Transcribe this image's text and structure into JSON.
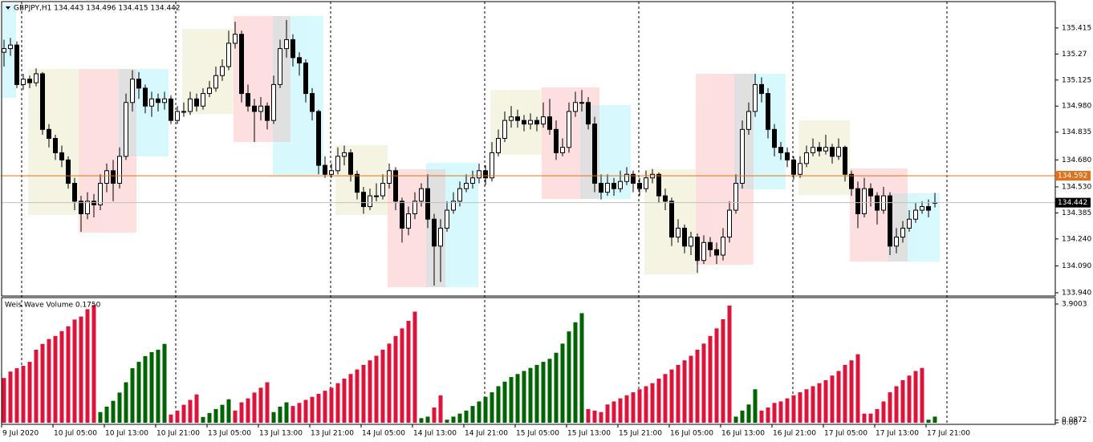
{
  "header": {
    "symbol_line": "GBPJPY,H1 134.443 134.496 134.415 134.442"
  },
  "chart_data": [
    {
      "type": "candlestick",
      "up_color": "#ffffff",
      "down_color": "#000000",
      "ylim": [
        133.922,
        135.562
      ],
      "yticks": [
        135.415,
        135.27,
        135.125,
        {
          "value": 134.98,
          "label": "134.980"
        },
        134.835,
        {
          "value": 134.68,
          "label": "134.680"
        },
        {
          "value": 134.53,
          "label": "134.530"
        },
        134.385,
        {
          "value": 134.24,
          "label": "134.240"
        },
        {
          "value": 134.09,
          "label": "134.090"
        },
        {
          "value": 133.94,
          "label": "133.940"
        }
      ],
      "price_lines": [
        {
          "value": 134.592,
          "color": "#e0701a",
          "label_color": "#e0701a"
        },
        {
          "value": 134.442,
          "color": "#c0c0c0",
          "label_color": "#000000"
        }
      ],
      "time_labels": [
        "9 Jul 2020",
        "10 Jul 05:00",
        "10 Jul 13:00",
        "10 Jul 21:00",
        "13 Jul 05:00",
        "13 Jul 13:00",
        "13 Jul 21:00",
        "14 Jul 05:00",
        "14 Jul 13:00",
        "14 Jul 21:00",
        "15 Jul 05:00",
        "15 Jul 13:00",
        "15 Jul 21:00",
        "16 Jul 05:00",
        "16 Jul 13:00",
        "16 Jul 21:00",
        "17 Jul 05:00",
        "17 Jul 13:00",
        "17 Jul 21:00"
      ],
      "ohlc": [
        [
          135.28,
          135.35,
          135.2,
          135.3
        ],
        [
          135.3,
          135.36,
          135.26,
          135.32
        ],
        [
          135.32,
          135.34,
          135.08,
          135.1
        ],
        [
          135.1,
          135.16,
          135.07,
          135.13
        ],
        [
          135.13,
          135.15,
          135.08,
          135.11
        ],
        [
          135.11,
          135.19,
          135.09,
          135.16
        ],
        [
          135.16,
          135.17,
          134.82,
          134.85
        ],
        [
          134.85,
          134.88,
          134.75,
          134.8
        ],
        [
          134.8,
          134.82,
          134.68,
          134.72
        ],
        [
          134.72,
          134.76,
          134.64,
          134.68
        ],
        [
          134.68,
          134.7,
          134.52,
          134.55
        ],
        [
          134.55,
          134.58,
          134.4,
          134.45
        ],
        [
          134.45,
          134.48,
          134.28,
          134.38
        ],
        [
          134.38,
          134.5,
          134.35,
          134.45
        ],
        [
          134.45,
          134.49,
          134.36,
          134.43
        ],
        [
          134.43,
          134.6,
          134.4,
          134.55
        ],
        [
          134.55,
          134.66,
          134.5,
          134.62
        ],
        [
          134.62,
          134.68,
          134.45,
          134.55
        ],
        [
          134.55,
          134.75,
          134.52,
          134.7
        ],
        [
          134.7,
          135.05,
          134.68,
          135.0
        ],
        [
          135.0,
          135.18,
          134.95,
          135.13
        ],
        [
          135.13,
          135.17,
          135.02,
          135.08
        ],
        [
          135.08,
          135.1,
          134.94,
          134.98
        ],
        [
          134.98,
          135.06,
          134.92,
          135.02
        ],
        [
          135.02,
          135.05,
          134.95,
          135.0
        ],
        [
          135.0,
          135.06,
          134.96,
          135.02
        ],
        [
          135.02,
          135.04,
          134.88,
          134.9
        ],
        [
          134.9,
          134.98,
          134.88,
          134.95
        ],
        [
          134.95,
          135.0,
          134.92,
          134.95
        ],
        [
          134.95,
          135.06,
          134.93,
          135.02
        ],
        [
          135.02,
          135.05,
          134.95,
          134.98
        ],
        [
          134.98,
          135.08,
          134.96,
          135.05
        ],
        [
          135.05,
          135.12,
          135.03,
          135.08
        ],
        [
          135.08,
          135.2,
          135.06,
          135.15
        ],
        [
          135.15,
          135.24,
          135.12,
          135.2
        ],
        [
          135.2,
          135.4,
          135.18,
          135.33
        ],
        [
          135.33,
          135.45,
          135.3,
          135.38
        ],
        [
          135.38,
          135.4,
          135.0,
          135.05
        ],
        [
          135.05,
          135.1,
          134.95,
          134.98
        ],
        [
          134.98,
          135.02,
          134.78,
          134.95
        ],
        [
          134.95,
          135.03,
          134.9,
          134.98
        ],
        [
          134.98,
          135.0,
          134.85,
          134.9
        ],
        [
          134.9,
          135.15,
          134.88,
          135.1
        ],
        [
          135.1,
          135.35,
          135.08,
          135.3
        ],
        [
          135.3,
          135.46,
          135.25,
          135.35
        ],
        [
          135.35,
          135.38,
          135.2,
          135.25
        ],
        [
          135.25,
          135.28,
          135.15,
          135.22
        ],
        [
          135.22,
          135.24,
          135.0,
          135.05
        ],
        [
          135.05,
          135.08,
          134.9,
          134.95
        ],
        [
          134.95,
          134.96,
          134.6,
          134.65
        ],
        [
          134.65,
          134.7,
          134.58,
          134.6
        ],
        [
          134.6,
          134.66,
          134.58,
          134.62
        ],
        [
          134.62,
          134.75,
          134.6,
          134.7
        ],
        [
          134.7,
          134.76,
          134.65,
          134.72
        ],
        [
          134.72,
          134.74,
          134.56,
          134.6
        ],
        [
          134.6,
          134.62,
          134.46,
          134.5
        ],
        [
          134.5,
          134.53,
          134.38,
          134.42
        ],
        [
          134.42,
          134.52,
          134.4,
          134.48
        ],
        [
          134.48,
          134.55,
          134.45,
          134.48
        ],
        [
          134.48,
          134.6,
          134.46,
          134.55
        ],
        [
          134.55,
          134.66,
          134.52,
          134.62
        ],
        [
          134.62,
          134.64,
          134.4,
          134.45
        ],
        [
          134.45,
          134.47,
          134.22,
          134.3
        ],
        [
          134.3,
          134.42,
          134.26,
          134.38
        ],
        [
          134.38,
          134.5,
          134.35,
          134.45
        ],
        [
          134.45,
          134.55,
          134.42,
          134.52
        ],
        [
          134.52,
          134.6,
          134.3,
          134.35
        ],
        [
          134.35,
          134.38,
          133.98,
          134.2
        ],
        [
          134.2,
          134.35,
          134.0,
          134.3
        ],
        [
          134.3,
          134.45,
          134.28,
          134.4
        ],
        [
          134.4,
          134.5,
          134.38,
          134.45
        ],
        [
          134.45,
          134.56,
          134.42,
          134.52
        ],
        [
          134.52,
          134.6,
          134.5,
          134.55
        ],
        [
          134.55,
          134.62,
          134.52,
          134.58
        ],
        [
          134.58,
          134.66,
          134.55,
          134.62
        ],
        [
          134.62,
          134.65,
          134.54,
          134.58
        ],
        [
          134.58,
          134.78,
          134.56,
          134.72
        ],
        [
          134.72,
          134.85,
          134.7,
          134.8
        ],
        [
          134.8,
          134.95,
          134.78,
          134.9
        ],
        [
          134.9,
          134.98,
          134.86,
          134.92
        ],
        [
          134.92,
          134.96,
          134.86,
          134.9
        ],
        [
          134.9,
          134.93,
          134.84,
          134.88
        ],
        [
          134.88,
          134.94,
          134.85,
          134.9
        ],
        [
          134.9,
          134.92,
          134.84,
          134.88
        ],
        [
          134.88,
          135.0,
          134.86,
          134.92
        ],
        [
          134.92,
          135.02,
          134.82,
          134.85
        ],
        [
          134.85,
          134.9,
          134.68,
          134.72
        ],
        [
          134.72,
          134.8,
          134.7,
          134.75
        ],
        [
          134.75,
          135.0,
          134.72,
          134.95
        ],
        [
          134.95,
          135.06,
          134.92,
          135.0
        ],
        [
          135.0,
          135.07,
          134.95,
          135.0
        ],
        [
          135.0,
          135.03,
          134.85,
          134.88
        ],
        [
          134.88,
          134.92,
          134.5,
          134.55
        ],
        [
          134.55,
          134.6,
          134.46,
          134.5
        ],
        [
          134.5,
          134.6,
          134.48,
          134.55
        ],
        [
          134.55,
          134.58,
          134.48,
          134.52
        ],
        [
          134.52,
          134.62,
          134.5,
          134.56
        ],
        [
          134.56,
          134.64,
          134.54,
          134.6
        ],
        [
          134.6,
          134.62,
          134.5,
          134.55
        ],
        [
          134.55,
          134.58,
          134.48,
          134.52
        ],
        [
          134.52,
          134.62,
          134.5,
          134.58
        ],
        [
          134.58,
          134.63,
          134.55,
          134.6
        ],
        [
          134.6,
          134.61,
          134.44,
          134.48
        ],
        [
          134.48,
          134.52,
          134.4,
          134.45
        ],
        [
          134.45,
          134.47,
          134.2,
          134.25
        ],
        [
          134.25,
          134.35,
          134.22,
          134.3
        ],
        [
          134.3,
          134.32,
          134.16,
          134.2
        ],
        [
          134.2,
          134.28,
          134.15,
          134.25
        ],
        [
          134.25,
          134.27,
          134.05,
          134.12
        ],
        [
          134.12,
          134.26,
          134.1,
          134.22
        ],
        [
          134.22,
          134.25,
          134.14,
          134.18
        ],
        [
          134.18,
          134.22,
          134.1,
          134.15
        ],
        [
          134.15,
          134.3,
          134.12,
          134.25
        ],
        [
          134.25,
          134.45,
          134.22,
          134.4
        ],
        [
          134.4,
          134.6,
          134.38,
          134.55
        ],
        [
          134.55,
          134.9,
          134.52,
          134.85
        ],
        [
          134.85,
          135.0,
          134.82,
          134.95
        ],
        [
          134.95,
          135.16,
          134.92,
          135.1
        ],
        [
          135.1,
          135.14,
          135.0,
          135.05
        ],
        [
          135.05,
          135.08,
          134.8,
          134.85
        ],
        [
          134.85,
          134.88,
          134.7,
          134.75
        ],
        [
          134.75,
          134.78,
          134.68,
          134.72
        ],
        [
          134.72,
          134.75,
          134.64,
          134.68
        ],
        [
          134.68,
          134.7,
          134.57,
          134.6
        ],
        [
          134.6,
          134.7,
          134.58,
          134.66
        ],
        [
          134.66,
          134.76,
          134.64,
          134.72
        ],
        [
          134.72,
          134.8,
          134.7,
          134.75
        ],
        [
          134.75,
          134.78,
          134.7,
          134.73
        ],
        [
          134.73,
          134.82,
          134.71,
          134.75
        ],
        [
          134.75,
          134.77,
          134.66,
          134.7
        ],
        [
          134.7,
          134.8,
          134.68,
          134.75
        ],
        [
          134.75,
          134.76,
          134.56,
          134.6
        ],
        [
          134.6,
          134.62,
          134.48,
          134.52
        ],
        [
          134.52,
          134.56,
          134.3,
          134.38
        ],
        [
          134.38,
          134.58,
          134.36,
          134.52
        ],
        [
          134.52,
          134.55,
          134.42,
          134.48
        ],
        [
          134.48,
          134.5,
          134.32,
          134.4
        ],
        [
          134.4,
          134.53,
          134.38,
          134.48
        ],
        [
          134.48,
          134.5,
          134.15,
          134.2
        ],
        [
          134.2,
          134.3,
          134.16,
          134.25
        ],
        [
          134.25,
          134.34,
          134.22,
          134.3
        ],
        [
          134.3,
          134.4,
          134.28,
          134.35
        ],
        [
          134.35,
          134.44,
          134.33,
          134.4
        ],
        [
          134.4,
          134.45,
          134.38,
          134.42
        ],
        [
          134.42,
          134.46,
          134.36,
          134.4
        ],
        [
          134.443,
          134.496,
          134.415,
          134.442
        ]
      ]
    },
    {
      "type": "bar",
      "title": "Weis Wave Volume 0.1750",
      "ylim": [
        -0.053,
        4.085
      ],
      "yticks": [
        3.9003,
        0.0872,
        {
          "value": 0,
          "label": "0.00"
        }
      ],
      "waves": [
        {
          "color": "#dc143c",
          "values": [
            1.47,
            1.68,
            1.79,
            1.87,
            2.0,
            2.4,
            2.59,
            2.75,
            2.85,
            3.01,
            3.17,
            3.39,
            3.49,
            3.73,
            3.87
          ]
        },
        {
          "color": "#006400",
          "values": [
            0.35,
            0.53,
            0.72,
            0.99,
            1.33,
            1.79,
            2.0,
            2.19,
            2.32,
            2.4,
            2.59
          ]
        },
        {
          "color": "#dc143c",
          "values": [
            0.27,
            0.4,
            0.59,
            0.75,
            0.93
          ]
        },
        {
          "color": "#006400",
          "values": [
            0.19,
            0.32,
            0.45,
            0.59,
            0.77
          ]
        },
        {
          "color": "#dc143c",
          "values": [
            0.4,
            0.67,
            0.8,
            0.99,
            1.15,
            1.33
          ]
        },
        {
          "color": "#006400",
          "values": [
            0.35,
            0.53,
            0.67
          ]
        },
        {
          "color": "#dc143c",
          "values": [
            0.55,
            0.65,
            0.75,
            0.85,
            0.95,
            1.05,
            1.15,
            1.3,
            1.45,
            1.6,
            1.75,
            1.9,
            2.05,
            2.2,
            2.4,
            2.6,
            2.85,
            3.1,
            3.35,
            3.65
          ]
        },
        {
          "color": "#006400",
          "values": [
            0.15,
            0.2
          ]
        },
        {
          "color": "#dc143c",
          "values": [
            0.5,
            0.9
          ]
        },
        {
          "color": "#006400",
          "values": [
            0.1,
            0.2,
            0.3,
            0.4,
            0.55,
            0.7,
            0.85,
            1.0,
            1.2,
            1.35,
            1.5,
            1.6,
            1.7,
            1.8,
            1.9,
            2.0,
            2.1,
            2.3,
            2.6,
            3.0,
            3.3,
            3.6
          ]
        },
        {
          "color": "#dc143c",
          "values": [
            0.45,
            0.4,
            0.35,
            0.6,
            0.7,
            0.8,
            0.9,
            1.0,
            1.1,
            1.2,
            1.3,
            1.45,
            1.6,
            1.75,
            1.9,
            2.05,
            2.2,
            2.4,
            2.6,
            2.85,
            3.1,
            3.4,
            3.85
          ]
        },
        {
          "color": "#006400",
          "values": [
            0.2,
            0.4,
            0.6,
            1.1
          ]
        },
        {
          "color": "#dc143c",
          "values": [
            0.4,
            0.5,
            0.65,
            0.7,
            0.8,
            0.9,
            1.0,
            1.1,
            1.2,
            1.3,
            1.4,
            1.55,
            1.7,
            1.9,
            2.05,
            2.25
          ]
        },
        {
          "color": "#dc143c",
          "values": [
            0.3,
            0.3,
            0.45,
            0.7,
            1.0,
            1.2,
            1.4,
            1.55,
            1.7,
            1.8
          ]
        },
        {
          "color": "#006400",
          "values": [
            0.1,
            0.2
          ]
        }
      ]
    }
  ]
}
